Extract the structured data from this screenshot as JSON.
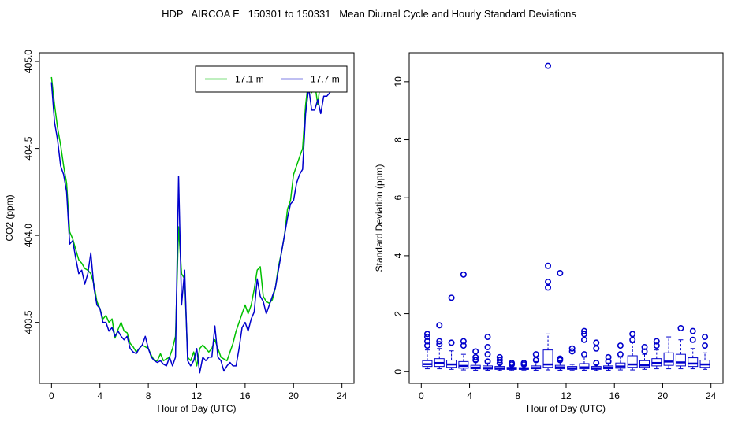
{
  "title": "HDP   AIRCOA E   150301 to 150331   Mean Diurnal Cycle and Hourly Standard Deviations",
  "chart_data": [
    {
      "type": "line",
      "xlabel": "Hour of Day (UTC)",
      "ylabel": "CO2 (ppm)",
      "xlim": [
        -1,
        25
      ],
      "ylim": [
        403.15,
        405.05
      ],
      "xticks": [
        0,
        4,
        8,
        12,
        16,
        20,
        24
      ],
      "xtick_labels": [
        "0",
        "4",
        "8",
        "12",
        "16",
        "20",
        "24"
      ],
      "yticks": [
        403.5,
        404.0,
        404.5,
        405.0
      ],
      "ytick_labels": [
        "403.5",
        "404.0",
        "404.5",
        "405.0"
      ],
      "grid": false,
      "legend_position": "top-right",
      "series": [
        {
          "name": "17.1 m",
          "color": "#00c000",
          "x": [
            0,
            0.25,
            0.5,
            0.75,
            1,
            1.25,
            1.5,
            1.75,
            2,
            2.25,
            2.5,
            2.75,
            3,
            3.25,
            3.5,
            3.75,
            4,
            4.25,
            4.5,
            4.75,
            5,
            5.25,
            5.5,
            5.75,
            6,
            6.25,
            6.5,
            6.75,
            7,
            7.25,
            7.5,
            7.75,
            8,
            8.25,
            8.5,
            8.75,
            9,
            9.25,
            9.5,
            9.75,
            10,
            10.25,
            10.5,
            10.75,
            11,
            11.25,
            11.5,
            11.75,
            12,
            12.25,
            12.5,
            12.75,
            13,
            13.25,
            13.5,
            13.75,
            14,
            14.25,
            14.5,
            14.75,
            15,
            15.25,
            15.5,
            15.75,
            16,
            16.25,
            16.5,
            16.75,
            17,
            17.25,
            17.5,
            17.75,
            18,
            18.25,
            18.5,
            18.75,
            19,
            19.25,
            19.5,
            19.75,
            20,
            20.25,
            20.5,
            20.75,
            21,
            21.25,
            21.5,
            21.75,
            22,
            22.25,
            22.5,
            22.75,
            23,
            23.25,
            23.5,
            23.75
          ],
          "values": [
            404.91,
            404.75,
            404.62,
            404.52,
            404.4,
            404.3,
            404.02,
            403.98,
            403.92,
            403.86,
            403.84,
            403.81,
            403.8,
            403.78,
            403.72,
            403.62,
            403.58,
            403.52,
            403.54,
            403.5,
            403.52,
            403.41,
            403.46,
            403.5,
            403.45,
            403.44,
            403.38,
            403.36,
            403.33,
            403.35,
            403.37,
            403.36,
            403.35,
            403.31,
            403.28,
            403.28,
            403.32,
            403.28,
            403.29,
            403.3,
            403.35,
            403.42,
            404.05,
            403.78,
            403.75,
            403.3,
            403.28,
            403.33,
            403.25,
            403.35,
            403.37,
            403.35,
            403.33,
            403.35,
            403.4,
            403.35,
            403.3,
            403.29,
            403.28,
            403.33,
            403.38,
            403.45,
            403.5,
            403.55,
            403.6,
            403.55,
            403.6,
            403.69,
            403.8,
            403.82,
            403.65,
            403.62,
            403.61,
            403.63,
            403.7,
            403.82,
            403.9,
            404.0,
            404.15,
            404.2,
            404.35,
            404.4,
            404.45,
            404.5,
            404.75,
            404.9,
            404.82,
            404.88,
            404.75,
            404.9,
            404.85,
            404.86,
            404.85,
            404.9,
            404.92,
            404.95
          ]
        },
        {
          "name": "17.7 m",
          "color": "#0000cc",
          "x": [
            0,
            0.25,
            0.5,
            0.75,
            1,
            1.25,
            1.5,
            1.75,
            2,
            2.25,
            2.5,
            2.75,
            3,
            3.25,
            3.5,
            3.75,
            4,
            4.25,
            4.5,
            4.75,
            5,
            5.25,
            5.5,
            5.75,
            6,
            6.25,
            6.5,
            6.75,
            7,
            7.25,
            7.5,
            7.75,
            8,
            8.25,
            8.5,
            8.75,
            9,
            9.25,
            9.5,
            9.75,
            10,
            10.25,
            10.5,
            10.75,
            11,
            11.25,
            11.5,
            11.75,
            12,
            12.25,
            12.5,
            12.75,
            13,
            13.25,
            13.5,
            13.75,
            14,
            14.25,
            14.5,
            14.75,
            15,
            15.25,
            15.5,
            15.75,
            16,
            16.25,
            16.5,
            16.75,
            17,
            17.25,
            17.5,
            17.75,
            18,
            18.25,
            18.5,
            18.75,
            19,
            19.25,
            19.5,
            19.75,
            20,
            20.25,
            20.5,
            20.75,
            21,
            21.25,
            21.5,
            21.75,
            22,
            22.25,
            22.5,
            22.75,
            23,
            23.25,
            23.5,
            23.75
          ],
          "values": [
            404.88,
            404.65,
            404.55,
            404.4,
            404.35,
            404.25,
            403.95,
            403.97,
            403.87,
            403.78,
            403.8,
            403.72,
            403.78,
            403.9,
            403.7,
            403.6,
            403.58,
            403.5,
            403.5,
            403.45,
            403.47,
            403.42,
            403.45,
            403.42,
            403.4,
            403.42,
            403.35,
            403.33,
            403.32,
            403.35,
            403.37,
            403.42,
            403.35,
            403.3,
            403.28,
            403.27,
            403.28,
            403.26,
            403.25,
            403.3,
            403.25,
            403.3,
            404.34,
            403.6,
            403.8,
            403.28,
            403.25,
            403.28,
            403.35,
            403.21,
            403.3,
            403.28,
            403.3,
            403.3,
            403.48,
            403.3,
            403.28,
            403.22,
            403.25,
            403.27,
            403.25,
            403.25,
            403.35,
            403.47,
            403.5,
            403.45,
            403.52,
            403.56,
            403.75,
            403.65,
            403.62,
            403.55,
            403.6,
            403.65,
            403.7,
            403.8,
            403.9,
            404.0,
            404.1,
            404.18,
            404.2,
            404.3,
            404.35,
            404.38,
            404.7,
            404.85,
            404.72,
            404.72,
            404.78,
            404.7,
            404.8,
            404.8,
            404.82,
            404.85,
            404.9,
            404.93
          ]
        }
      ]
    },
    {
      "type": "box",
      "xlabel": "Hour of Day (UTC)",
      "ylabel": "Standard Deviation (ppm)",
      "xlim": [
        -1,
        25
      ],
      "ylim": [
        -0.4,
        11.0
      ],
      "xticks": [
        0,
        4,
        8,
        12,
        16,
        20,
        24
      ],
      "xtick_labels": [
        "0",
        "4",
        "8",
        "12",
        "16",
        "20",
        "24"
      ],
      "yticks": [
        0,
        2,
        4,
        6,
        8,
        10
      ],
      "ytick_labels": [
        "0",
        "2",
        "4",
        "6",
        "8",
        "10"
      ],
      "grid": false,
      "color": "#0000cc",
      "boxes": [
        {
          "x": 0.5,
          "min": 0.1,
          "q1": 0.18,
          "median": 0.26,
          "q3": 0.38,
          "max": 0.75,
          "outliers": [
            0.9,
            1.05,
            1.2,
            1.3
          ]
        },
        {
          "x": 1.5,
          "min": 0.1,
          "q1": 0.18,
          "median": 0.3,
          "q3": 0.45,
          "max": 0.8,
          "outliers": [
            0.95,
            1.05,
            1.6
          ]
        },
        {
          "x": 2.5,
          "min": 0.08,
          "q1": 0.15,
          "median": 0.25,
          "q3": 0.4,
          "max": 0.72,
          "outliers": [
            1.0,
            2.55
          ]
        },
        {
          "x": 3.5,
          "min": 0.06,
          "q1": 0.12,
          "median": 0.2,
          "q3": 0.35,
          "max": 0.6,
          "outliers": [
            0.9,
            1.05,
            3.35
          ]
        },
        {
          "x": 4.5,
          "min": 0.05,
          "q1": 0.1,
          "median": 0.14,
          "q3": 0.22,
          "max": 0.35,
          "outliers": [
            0.4,
            0.5,
            0.7
          ]
        },
        {
          "x": 5.5,
          "min": 0.05,
          "q1": 0.09,
          "median": 0.13,
          "q3": 0.2,
          "max": 0.3,
          "outliers": [
            0.35,
            0.6,
            0.85,
            1.2
          ]
        },
        {
          "x": 6.5,
          "min": 0.04,
          "q1": 0.08,
          "median": 0.12,
          "q3": 0.18,
          "max": 0.25,
          "outliers": [
            0.3,
            0.4,
            0.5
          ]
        },
        {
          "x": 7.5,
          "min": 0.04,
          "q1": 0.08,
          "median": 0.1,
          "q3": 0.15,
          "max": 0.2,
          "outliers": [
            0.25,
            0.3
          ]
        },
        {
          "x": 8.5,
          "min": 0.04,
          "q1": 0.08,
          "median": 0.1,
          "q3": 0.14,
          "max": 0.2,
          "outliers": [
            0.25,
            0.3
          ]
        },
        {
          "x": 9.5,
          "min": 0.05,
          "q1": 0.1,
          "median": 0.13,
          "q3": 0.2,
          "max": 0.35,
          "outliers": [
            0.4,
            0.6
          ]
        },
        {
          "x": 10.5,
          "min": 0.06,
          "q1": 0.15,
          "median": 0.25,
          "q3": 0.75,
          "max": 1.3,
          "outliers": [
            2.9,
            3.1,
            3.65,
            10.55
          ]
        },
        {
          "x": 11.5,
          "min": 0.05,
          "q1": 0.1,
          "median": 0.15,
          "q3": 0.22,
          "max": 0.35,
          "outliers": [
            0.4,
            0.45,
            3.4
          ]
        },
        {
          "x": 12.5,
          "min": 0.04,
          "q1": 0.08,
          "median": 0.12,
          "q3": 0.18,
          "max": 0.25,
          "outliers": [
            0.7,
            0.8
          ]
        },
        {
          "x": 13.5,
          "min": 0.05,
          "q1": 0.1,
          "median": 0.15,
          "q3": 0.28,
          "max": 0.5,
          "outliers": [
            0.6,
            1.1,
            1.3,
            1.4
          ]
        },
        {
          "x": 14.5,
          "min": 0.04,
          "q1": 0.08,
          "median": 0.12,
          "q3": 0.18,
          "max": 0.25,
          "outliers": [
            0.3,
            0.8,
            1.0
          ]
        },
        {
          "x": 15.5,
          "min": 0.05,
          "q1": 0.1,
          "median": 0.14,
          "q3": 0.2,
          "max": 0.3,
          "outliers": [
            0.35,
            0.5
          ]
        },
        {
          "x": 16.5,
          "min": 0.06,
          "q1": 0.12,
          "median": 0.18,
          "q3": 0.3,
          "max": 0.5,
          "outliers": [
            0.6,
            0.9
          ]
        },
        {
          "x": 17.5,
          "min": 0.06,
          "q1": 0.15,
          "median": 0.25,
          "q3": 0.55,
          "max": 1.0,
          "outliers": [
            1.1,
            1.3
          ]
        },
        {
          "x": 18.5,
          "min": 0.08,
          "q1": 0.15,
          "median": 0.22,
          "q3": 0.38,
          "max": 0.6,
          "outliers": [
            0.7,
            0.85
          ]
        },
        {
          "x": 19.5,
          "min": 0.1,
          "q1": 0.2,
          "median": 0.3,
          "q3": 0.45,
          "max": 0.75,
          "outliers": [
            0.9,
            1.05
          ]
        },
        {
          "x": 20.5,
          "min": 0.1,
          "q1": 0.22,
          "median": 0.35,
          "q3": 0.65,
          "max": 1.2,
          "outliers": []
        },
        {
          "x": 21.5,
          "min": 0.1,
          "q1": 0.2,
          "median": 0.32,
          "q3": 0.6,
          "max": 1.1,
          "outliers": [
            1.5
          ]
        },
        {
          "x": 22.5,
          "min": 0.1,
          "q1": 0.18,
          "median": 0.28,
          "q3": 0.48,
          "max": 0.8,
          "outliers": [
            1.1,
            1.4
          ]
        },
        {
          "x": 23.5,
          "min": 0.08,
          "q1": 0.15,
          "median": 0.25,
          "q3": 0.4,
          "max": 0.65,
          "outliers": [
            0.9,
            1.2
          ]
        }
      ]
    }
  ]
}
